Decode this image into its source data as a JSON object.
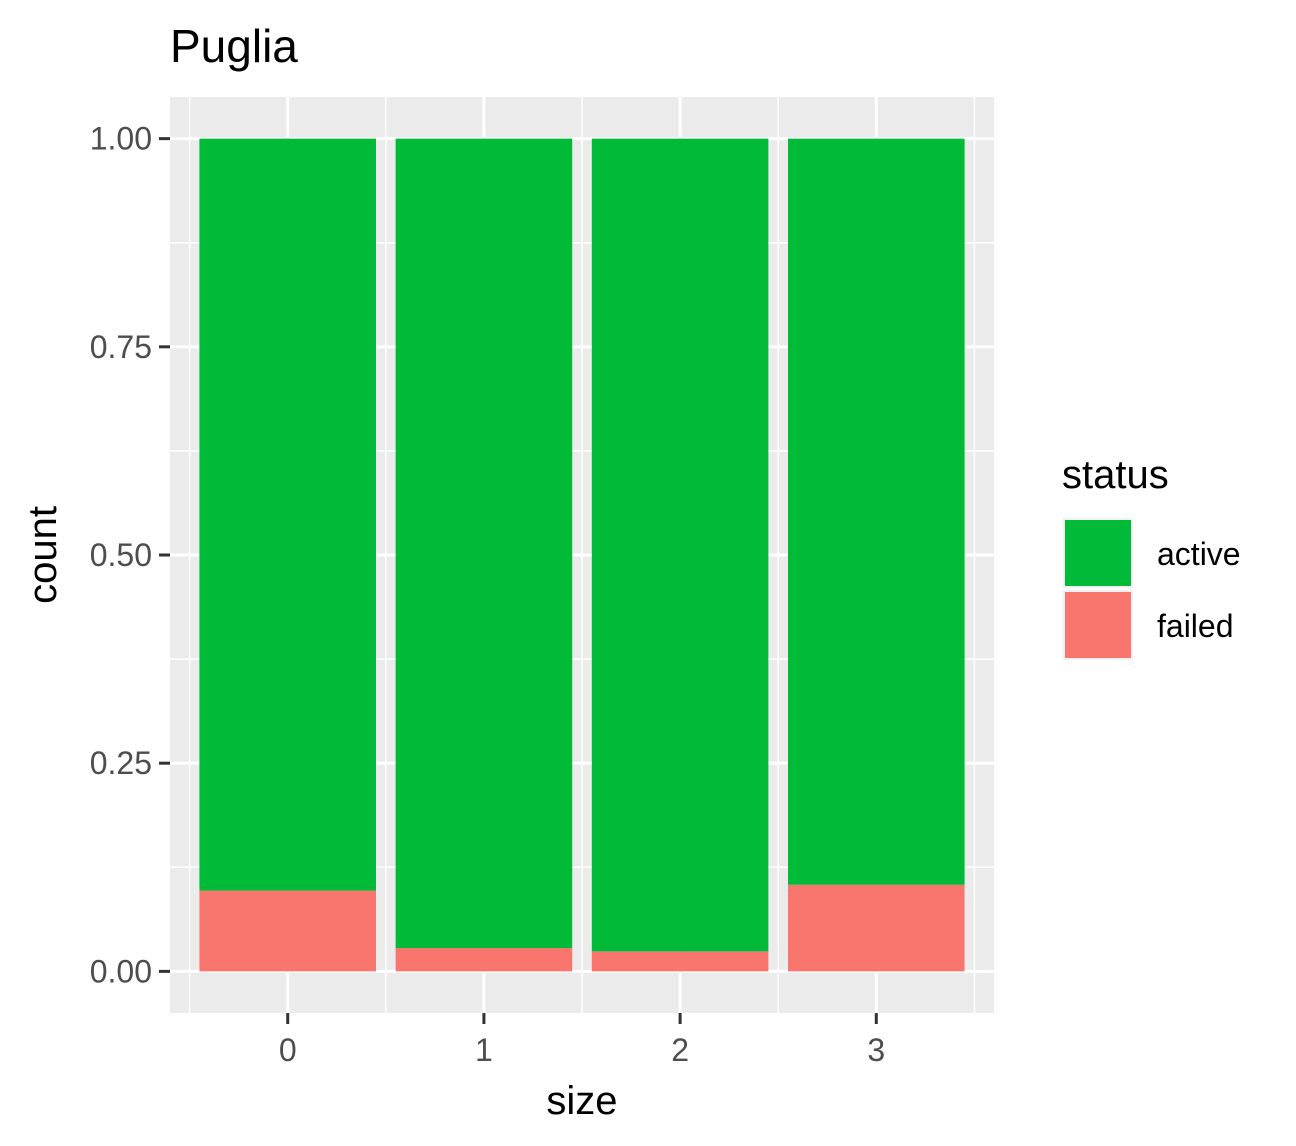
{
  "chart_data": {
    "type": "bar",
    "stacked": true,
    "title": "Puglia",
    "xlabel": "size",
    "ylabel": "count",
    "categories": [
      "0",
      "1",
      "2",
      "3"
    ],
    "ylim": [
      -0.05,
      1.05
    ],
    "yticks": [
      0.0,
      0.25,
      0.5,
      0.75,
      1.0
    ],
    "ytick_labels": [
      "0.00",
      "0.25",
      "0.50",
      "0.75",
      "1.00"
    ],
    "series": [
      {
        "name": "failed",
        "color": "#F8766D",
        "values": [
          0.097,
          0.028,
          0.024,
          0.104
        ]
      },
      {
        "name": "active",
        "color": "#00BA38",
        "values": [
          0.903,
          0.972,
          0.976,
          0.896
        ]
      }
    ],
    "legend": {
      "title": "status",
      "position": "right",
      "entries": [
        {
          "label": "active",
          "color": "#00BA38"
        },
        {
          "label": "failed",
          "color": "#F8766D"
        }
      ]
    },
    "grid": true,
    "panel_background": "#EBEBEB"
  }
}
